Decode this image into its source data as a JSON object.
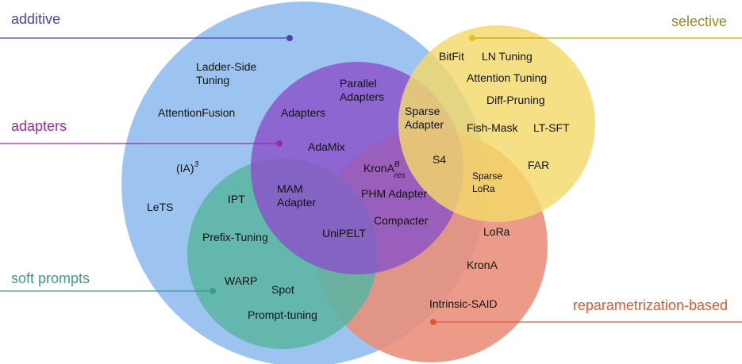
{
  "categories": {
    "additive": {
      "label": "additive",
      "color": "#4646a8",
      "fill": "#9dc4f1"
    },
    "selective": {
      "label": "selective",
      "color": "#9a8a1c",
      "fill": "#f4d96a"
    },
    "adapters": {
      "label": "adapters",
      "color": "#9a2aa6",
      "fill": "#8a52c9"
    },
    "soft_prompts": {
      "label": "soft prompts",
      "color": "#3a9e86",
      "fill": "#5bb5a3"
    },
    "reparametrization": {
      "label": "reparametrization-based",
      "color": "#e0582e",
      "fill": "#e9907a"
    }
  },
  "methods": {
    "ladder_side_1": "Ladder-Side",
    "ladder_side_2": "Tuning",
    "attention_fusion": "AttentionFusion",
    "ia3_base": "(IA)",
    "ia3_sup": "3",
    "lets": "LeTS",
    "ipt": "IPT",
    "prefix_tuning": "Prefix-Tuning",
    "warp": "WARP",
    "spot": "Spot",
    "prompt_tuning": "Prompt-tuning",
    "parallel_adapters_1": "Parallel",
    "parallel_adapters_2": "Adapters",
    "adapters": "Adapters",
    "adamix": "AdaMix",
    "mam_adapter_1": "MAM",
    "mam_adapter_2": "Adapter",
    "unipelt": "UniPELT",
    "krona_res_base": "KronA",
    "krona_res_sup": "B",
    "krona_res_sub": "res",
    "phm_adapter": "PHM Adapter",
    "compacter": "Compacter",
    "sparse_adapter_1": "Sparse",
    "sparse_adapter_2": "Adapter",
    "s4": "S4",
    "sparse_lora_1": "Sparse",
    "sparse_lora_2": "LoRa",
    "bitfit": "BitFit",
    "ln_tuning": "LN Tuning",
    "attention_tuning": "Attention Tuning",
    "diff_pruning": "Diff-Pruning",
    "fish_mask": "Fish-Mask",
    "lt_sft": "LT-SFT",
    "far": "FAR",
    "lora": "LoRa",
    "krona": "KronA",
    "intrinsic_said": "Intrinsic-SAID"
  }
}
